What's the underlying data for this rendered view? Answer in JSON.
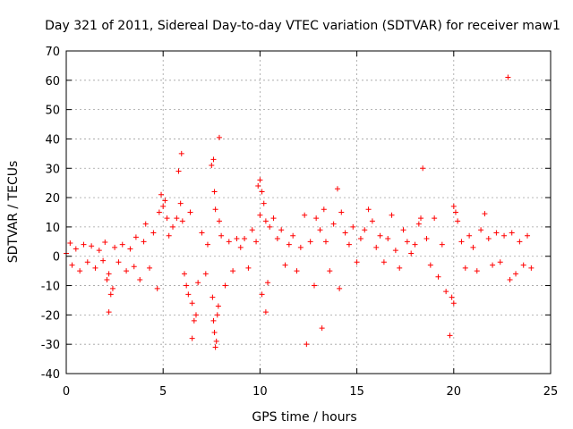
{
  "chart_data": {
    "type": "scatter",
    "title": "Day 321 of 2011, Sidereal Day-to-day VTEC variation (SDTVAR) for receiver maw1",
    "xlabel": "GPS time / hours",
    "ylabel": "SDTVAR / TECUs",
    "xlim": [
      0,
      25
    ],
    "ylim": [
      -40,
      70
    ],
    "xticks": [
      "0",
      "5",
      "10",
      "15",
      "20",
      "25"
    ],
    "yticks": [
      "-40",
      "-30",
      "-20",
      "-10",
      "0",
      "10",
      "20",
      "30",
      "40",
      "50",
      "60",
      "70"
    ],
    "grid": true,
    "marker": "plus",
    "color": "#ff0000",
    "series": [
      {
        "name": "SDTVAR",
        "points": [
          [
            0.0,
            1.0
          ],
          [
            0.2,
            4.5
          ],
          [
            0.3,
            -3.0
          ],
          [
            0.5,
            2.5
          ],
          [
            0.7,
            -5.0
          ],
          [
            0.9,
            4.0
          ],
          [
            1.1,
            -2.0
          ],
          [
            1.3,
            3.5
          ],
          [
            1.5,
            -4.0
          ],
          [
            1.7,
            2.0
          ],
          [
            1.9,
            -1.5
          ],
          [
            2.0,
            4.8
          ],
          [
            2.2,
            -19.0
          ],
          [
            2.1,
            -8.0
          ],
          [
            2.3,
            -13.0
          ],
          [
            2.4,
            -11.0
          ],
          [
            2.2,
            -6.0
          ],
          [
            2.5,
            3.0
          ],
          [
            2.7,
            -2.0
          ],
          [
            2.9,
            4.0
          ],
          [
            3.1,
            -5.0
          ],
          [
            3.3,
            2.5
          ],
          [
            3.5,
            -3.5
          ],
          [
            3.6,
            6.5
          ],
          [
            3.8,
            -8.0
          ],
          [
            4.0,
            5.0
          ],
          [
            4.1,
            11.0
          ],
          [
            4.3,
            -4.0
          ],
          [
            4.5,
            8.0
          ],
          [
            4.7,
            -11.0
          ],
          [
            4.9,
            21.0
          ],
          [
            4.8,
            15.0
          ],
          [
            5.0,
            17.0
          ],
          [
            5.1,
            19.0
          ],
          [
            5.2,
            13.0
          ],
          [
            5.3,
            7.0
          ],
          [
            5.5,
            10.0
          ],
          [
            5.7,
            13.0
          ],
          [
            5.8,
            29.0
          ],
          [
            5.95,
            35.0
          ],
          [
            5.9,
            18.0
          ],
          [
            6.0,
            12.0
          ],
          [
            6.1,
            -6.0
          ],
          [
            6.2,
            -10.0
          ],
          [
            6.3,
            -13.0
          ],
          [
            6.4,
            15.0
          ],
          [
            6.5,
            -16.0
          ],
          [
            6.6,
            -22.0
          ],
          [
            6.5,
            -28.0
          ],
          [
            6.7,
            -20.0
          ],
          [
            6.8,
            -9.0
          ],
          [
            7.0,
            8.0
          ],
          [
            7.2,
            -6.0
          ],
          [
            7.3,
            4.0
          ],
          [
            7.5,
            31.0
          ],
          [
            7.6,
            33.0
          ],
          [
            7.65,
            22.0
          ],
          [
            7.7,
            16.0
          ],
          [
            7.55,
            -14.0
          ],
          [
            7.6,
            -22.0
          ],
          [
            7.65,
            -26.0
          ],
          [
            7.7,
            -31.0
          ],
          [
            7.75,
            -29.0
          ],
          [
            7.8,
            -20.0
          ],
          [
            7.85,
            -17.0
          ],
          [
            7.9,
            40.5
          ],
          [
            7.9,
            12.0
          ],
          [
            8.0,
            7.0
          ],
          [
            8.2,
            -10.0
          ],
          [
            8.4,
            5.0
          ],
          [
            8.6,
            -5.0
          ],
          [
            8.8,
            6.0
          ],
          [
            9.0,
            3.0
          ],
          [
            9.2,
            6.0
          ],
          [
            9.4,
            -4.0
          ],
          [
            9.6,
            9.0
          ],
          [
            9.8,
            5.0
          ],
          [
            9.9,
            24.0
          ],
          [
            10.0,
            26.0
          ],
          [
            10.1,
            22.0
          ],
          [
            10.2,
            18.0
          ],
          [
            10.0,
            14.0
          ],
          [
            10.3,
            12.0
          ],
          [
            10.1,
            -13.0
          ],
          [
            10.3,
            -19.0
          ],
          [
            10.4,
            -9.0
          ],
          [
            10.5,
            10.0
          ],
          [
            10.7,
            13.0
          ],
          [
            10.9,
            6.0
          ],
          [
            11.1,
            9.0
          ],
          [
            11.3,
            -3.0
          ],
          [
            11.5,
            4.0
          ],
          [
            11.7,
            7.0
          ],
          [
            11.9,
            -5.0
          ],
          [
            12.1,
            3.0
          ],
          [
            12.3,
            14.0
          ],
          [
            12.4,
            -30.0
          ],
          [
            12.6,
            5.0
          ],
          [
            12.8,
            -10.0
          ],
          [
            12.9,
            13.0
          ],
          [
            13.1,
            9.0
          ],
          [
            13.2,
            -24.5
          ],
          [
            13.3,
            16.0
          ],
          [
            13.4,
            5.0
          ],
          [
            13.6,
            -5.0
          ],
          [
            13.8,
            11.0
          ],
          [
            14.0,
            23.0
          ],
          [
            14.1,
            -11.0
          ],
          [
            14.2,
            15.0
          ],
          [
            14.4,
            8.0
          ],
          [
            14.6,
            4.0
          ],
          [
            14.8,
            10.0
          ],
          [
            15.0,
            -2.0
          ],
          [
            15.2,
            6.0
          ],
          [
            15.4,
            9.0
          ],
          [
            15.6,
            16.0
          ],
          [
            15.8,
            12.0
          ],
          [
            16.0,
            3.0
          ],
          [
            16.2,
            7.0
          ],
          [
            16.4,
            -2.0
          ],
          [
            16.6,
            6.0
          ],
          [
            16.8,
            14.0
          ],
          [
            17.0,
            2.0
          ],
          [
            17.2,
            -4.0
          ],
          [
            17.4,
            9.0
          ],
          [
            17.6,
            5.0
          ],
          [
            17.8,
            1.0
          ],
          [
            18.0,
            4.0
          ],
          [
            18.2,
            11.0
          ],
          [
            18.4,
            30.0
          ],
          [
            18.3,
            13.0
          ],
          [
            18.6,
            6.0
          ],
          [
            18.8,
            -3.0
          ],
          [
            19.0,
            13.0
          ],
          [
            19.2,
            -7.0
          ],
          [
            19.4,
            4.0
          ],
          [
            19.6,
            -12.0
          ],
          [
            19.8,
            -27.0
          ],
          [
            19.9,
            -14.0
          ],
          [
            20.0,
            17.0
          ],
          [
            20.0,
            -16.0
          ],
          [
            20.1,
            15.0
          ],
          [
            20.2,
            12.0
          ],
          [
            20.4,
            5.0
          ],
          [
            20.6,
            -4.0
          ],
          [
            20.8,
            7.0
          ],
          [
            21.0,
            3.0
          ],
          [
            21.2,
            -5.0
          ],
          [
            21.4,
            9.0
          ],
          [
            21.6,
            14.5
          ],
          [
            21.8,
            6.0
          ],
          [
            22.0,
            -3.0
          ],
          [
            22.2,
            8.0
          ],
          [
            22.4,
            -2.0
          ],
          [
            22.6,
            7.0
          ],
          [
            22.8,
            61.0
          ],
          [
            22.9,
            -8.0
          ],
          [
            23.0,
            8.0
          ],
          [
            23.2,
            -6.0
          ],
          [
            23.4,
            5.0
          ],
          [
            23.6,
            -3.0
          ],
          [
            23.8,
            7.0
          ],
          [
            24.0,
            -4.0
          ]
        ]
      }
    ]
  }
}
